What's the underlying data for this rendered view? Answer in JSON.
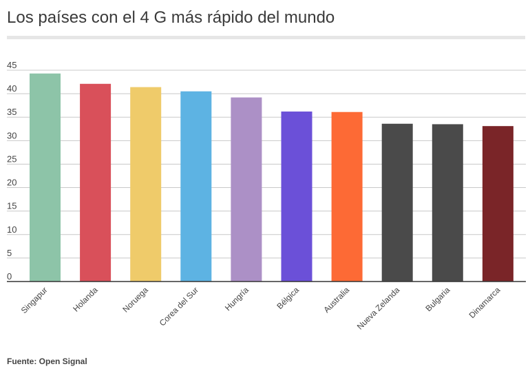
{
  "chart_data": {
    "type": "bar",
    "title": "Los países con el 4 G más rápido del mundo",
    "categories": [
      "Singapur",
      "Holanda",
      "Noruega",
      "Corea del Sur",
      "Hungría",
      "Bélgica",
      "Australia",
      "Nueva Zelanda",
      "Bulgaria",
      "Dinamarca"
    ],
    "values": [
      44.3,
      42.1,
      41.4,
      40.5,
      39.2,
      36.2,
      36.1,
      33.6,
      33.5,
      33.1
    ],
    "colors": [
      "#8dc4a8",
      "#d9505a",
      "#efcb6a",
      "#5db3e3",
      "#ac90c6",
      "#6b50d8",
      "#fd6a35",
      "#4a4a4a",
      "#4a4a4a",
      "#7a2528"
    ],
    "yticks": [
      0,
      5,
      10,
      15,
      20,
      25,
      30,
      35,
      40,
      45
    ],
    "ylim": [
      0,
      45
    ],
    "grid": true,
    "source": "Fuente: Open Signal"
  }
}
